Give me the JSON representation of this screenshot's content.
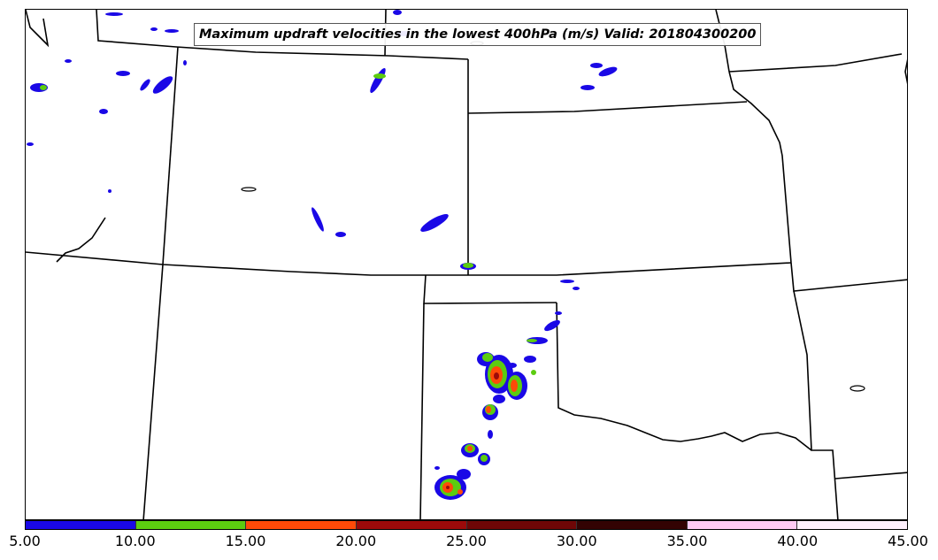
{
  "map": {
    "title": "Maximum updraft velocities in the lowest 400hPa (m/s) Valid: 201804300200",
    "variable_units": "m/s",
    "basemap": "state boundaries, central U.S."
  },
  "colorbar": {
    "levels": [
      "5.00",
      "10.00",
      "15.00",
      "20.00",
      "25.00",
      "30.00",
      "35.00",
      "40.00",
      "45.00"
    ],
    "colors": [
      "#1a08e6",
      "#5ccc10",
      "#ff4a08",
      "#9c0a0a",
      "#6e0606",
      "#330303",
      "#ffcaf4",
      "#fff0fd"
    ]
  },
  "chart_data": {
    "type": "heatmap",
    "title": "Maximum updraft velocities in the lowest 400hPa (m/s) Valid: 201804300200",
    "colorbar_range": [
      5,
      45
    ],
    "colorbar_interval": 5
  }
}
